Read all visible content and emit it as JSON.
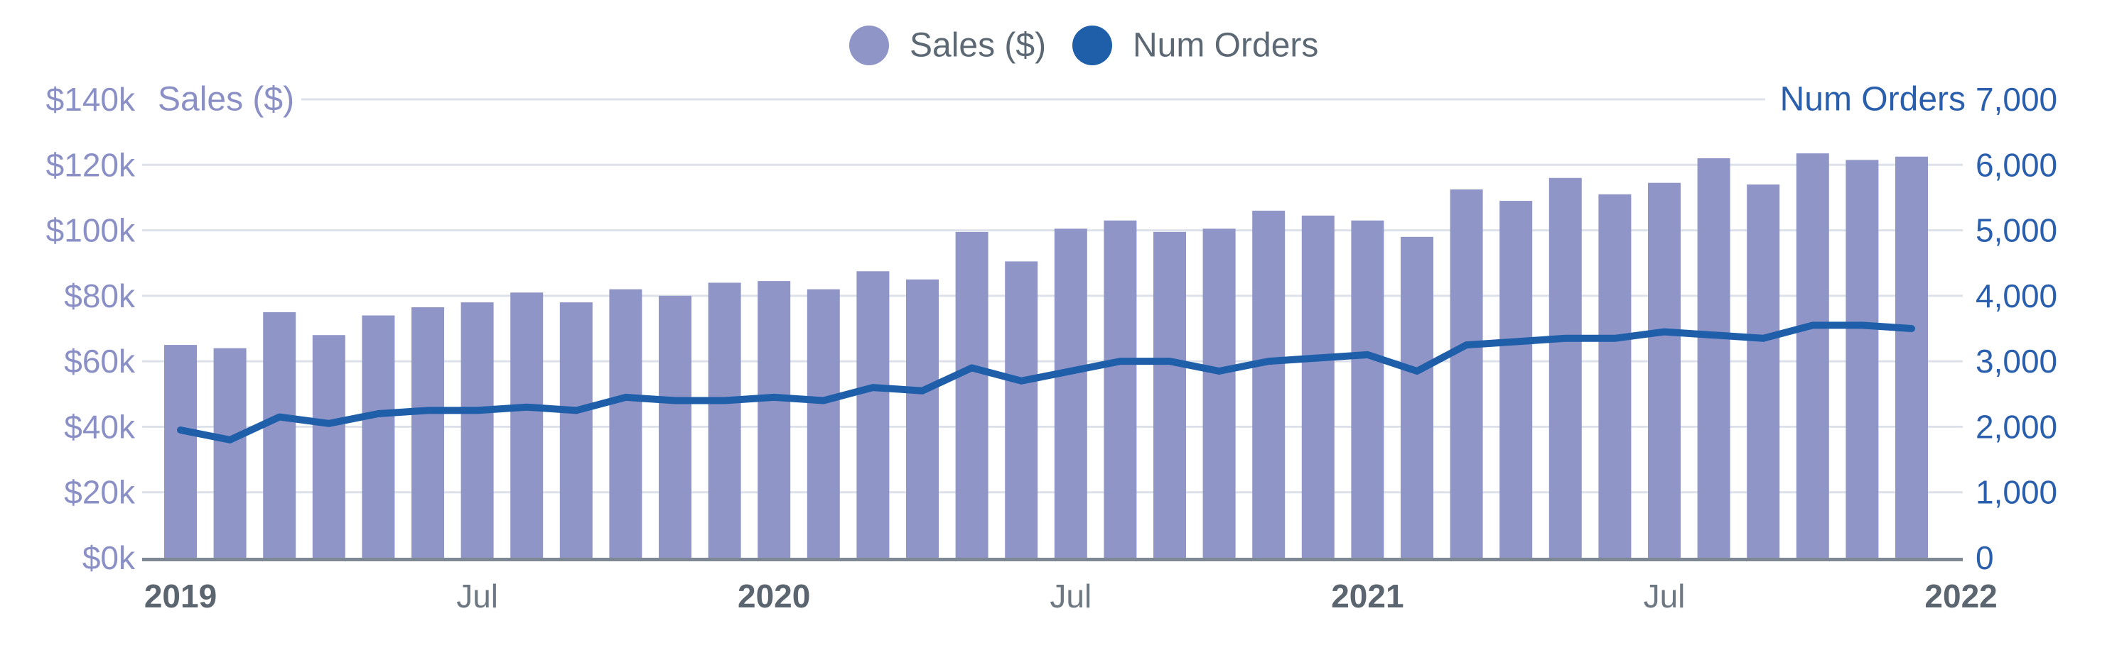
{
  "legend": {
    "sales_label": "Sales ($)",
    "orders_label": "Num Orders"
  },
  "colors": {
    "bar": "#9095C8",
    "line": "#1F5FA9",
    "left_axis_text": "#8A8FC5",
    "right_axis_text": "#2A5FAD",
    "legend_text": "#5C6874",
    "grid": "#DDE1E9",
    "axis_line": "#7E8894",
    "x_label_year": "#5B6570",
    "x_label_month": "#6E7883",
    "background": "#FFFFFF"
  },
  "axes": {
    "left": {
      "title": "Sales ($)",
      "ticks": [
        "$0k",
        "$20k",
        "$40k",
        "$60k",
        "$80k",
        "$100k",
        "$120k",
        "$140k"
      ]
    },
    "right": {
      "title": "Num Orders",
      "ticks": [
        "0",
        "1,000",
        "2,000",
        "3,000",
        "4,000",
        "5,000",
        "6,000",
        "7,000"
      ]
    },
    "x": {
      "labels": [
        {
          "text": "2019",
          "bold": true
        },
        {
          "text": "Jul",
          "bold": false
        },
        {
          "text": "2020",
          "bold": true
        },
        {
          "text": "Jul",
          "bold": false
        },
        {
          "text": "2021",
          "bold": true
        },
        {
          "text": "Jul",
          "bold": false
        },
        {
          "text": "2022",
          "bold": true
        }
      ],
      "label_every_n_months": 6
    }
  },
  "chart_data": {
    "type": "bar+line combo, dual y-axis",
    "x": [
      "Jan 2019",
      "Feb 2019",
      "Mar 2019",
      "Apr 2019",
      "May 2019",
      "Jun 2019",
      "Jul 2019",
      "Aug 2019",
      "Sep 2019",
      "Oct 2019",
      "Nov 2019",
      "Dec 2019",
      "Jan 2020",
      "Feb 2020",
      "Mar 2020",
      "Apr 2020",
      "May 2020",
      "Jun 2020",
      "Jul 2020",
      "Aug 2020",
      "Sep 2020",
      "Oct 2020",
      "Nov 2020",
      "Dec 2020",
      "Jan 2021",
      "Feb 2021",
      "Mar 2021",
      "Apr 2021",
      "May 2021",
      "Jun 2021",
      "Jul 2021",
      "Aug 2021",
      "Sep 2021",
      "Oct 2021",
      "Nov 2021",
      "Dec 2021"
    ],
    "series": [
      {
        "name": "Sales ($)",
        "type": "bar",
        "axis": "left",
        "values": [
          65000,
          64000,
          75000,
          68000,
          74000,
          76500,
          78000,
          81000,
          78000,
          82000,
          80000,
          84000,
          84500,
          82000,
          87500,
          85000,
          99500,
          90500,
          100500,
          103000,
          99500,
          100500,
          106000,
          104500,
          103000,
          98000,
          112500,
          109000,
          116000,
          111000,
          114500,
          122000,
          114000,
          123500,
          121500,
          122500
        ]
      },
      {
        "name": "Num Orders",
        "type": "line",
        "axis": "right",
        "values": [
          1950,
          1800,
          2150,
          2050,
          2200,
          2250,
          2250,
          2300,
          2250,
          2450,
          2400,
          2400,
          2450,
          2400,
          2600,
          2550,
          2900,
          2700,
          2850,
          3000,
          3000,
          2850,
          3000,
          3050,
          3100,
          2850,
          3250,
          3300,
          3350,
          3350,
          3450,
          3400,
          3350,
          3550,
          3550,
          3500
        ]
      }
    ],
    "left_axis": {
      "label": "Sales ($)",
      "min": 0,
      "max": 140000,
      "tick_step": 20000,
      "tick_format": "$Nk"
    },
    "right_axis": {
      "label": "Num Orders",
      "min": 0,
      "max": 7000,
      "tick_step": 1000
    },
    "x_tick_labels": [
      "2019",
      "Jul",
      "2020",
      "Jul",
      "2021",
      "Jul",
      "2022"
    ],
    "legend_position": "top-center",
    "grid": "horizontal only"
  }
}
